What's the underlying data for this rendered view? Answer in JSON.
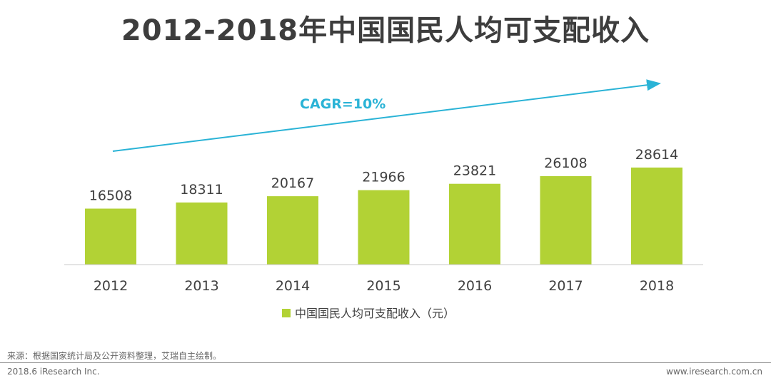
{
  "chart_data": {
    "type": "bar",
    "title": "2012-2018年中国国民人均可支配收入",
    "categories": [
      "2012",
      "2013",
      "2014",
      "2015",
      "2016",
      "2017",
      "2018"
    ],
    "values": [
      16508,
      18311,
      20167,
      21966,
      23821,
      26108,
      28614
    ],
    "series": [
      {
        "name": "中国国民人均可支配收入（元）",
        "values": [
          16508,
          18311,
          20167,
          21966,
          23821,
          26108,
          28614
        ]
      }
    ],
    "legend": [
      "中国国民人均可支配收入（元）"
    ],
    "legend_position": "bottom",
    "annotation": "CAGR=10%",
    "xlabel": "",
    "ylabel": "",
    "ylim": [
      0,
      35000
    ],
    "grid": false
  },
  "colors": {
    "bar": "#b2d235",
    "annotation": "#2ab3d6",
    "title": "#3d3d3d",
    "labels": "#404040"
  },
  "footer": {
    "source": "来源：根据国家统计局及公开资料整理，艾瑞自主绘制。",
    "left": "2018.6 iResearch Inc.",
    "right": "www.iresearch.com.cn"
  }
}
